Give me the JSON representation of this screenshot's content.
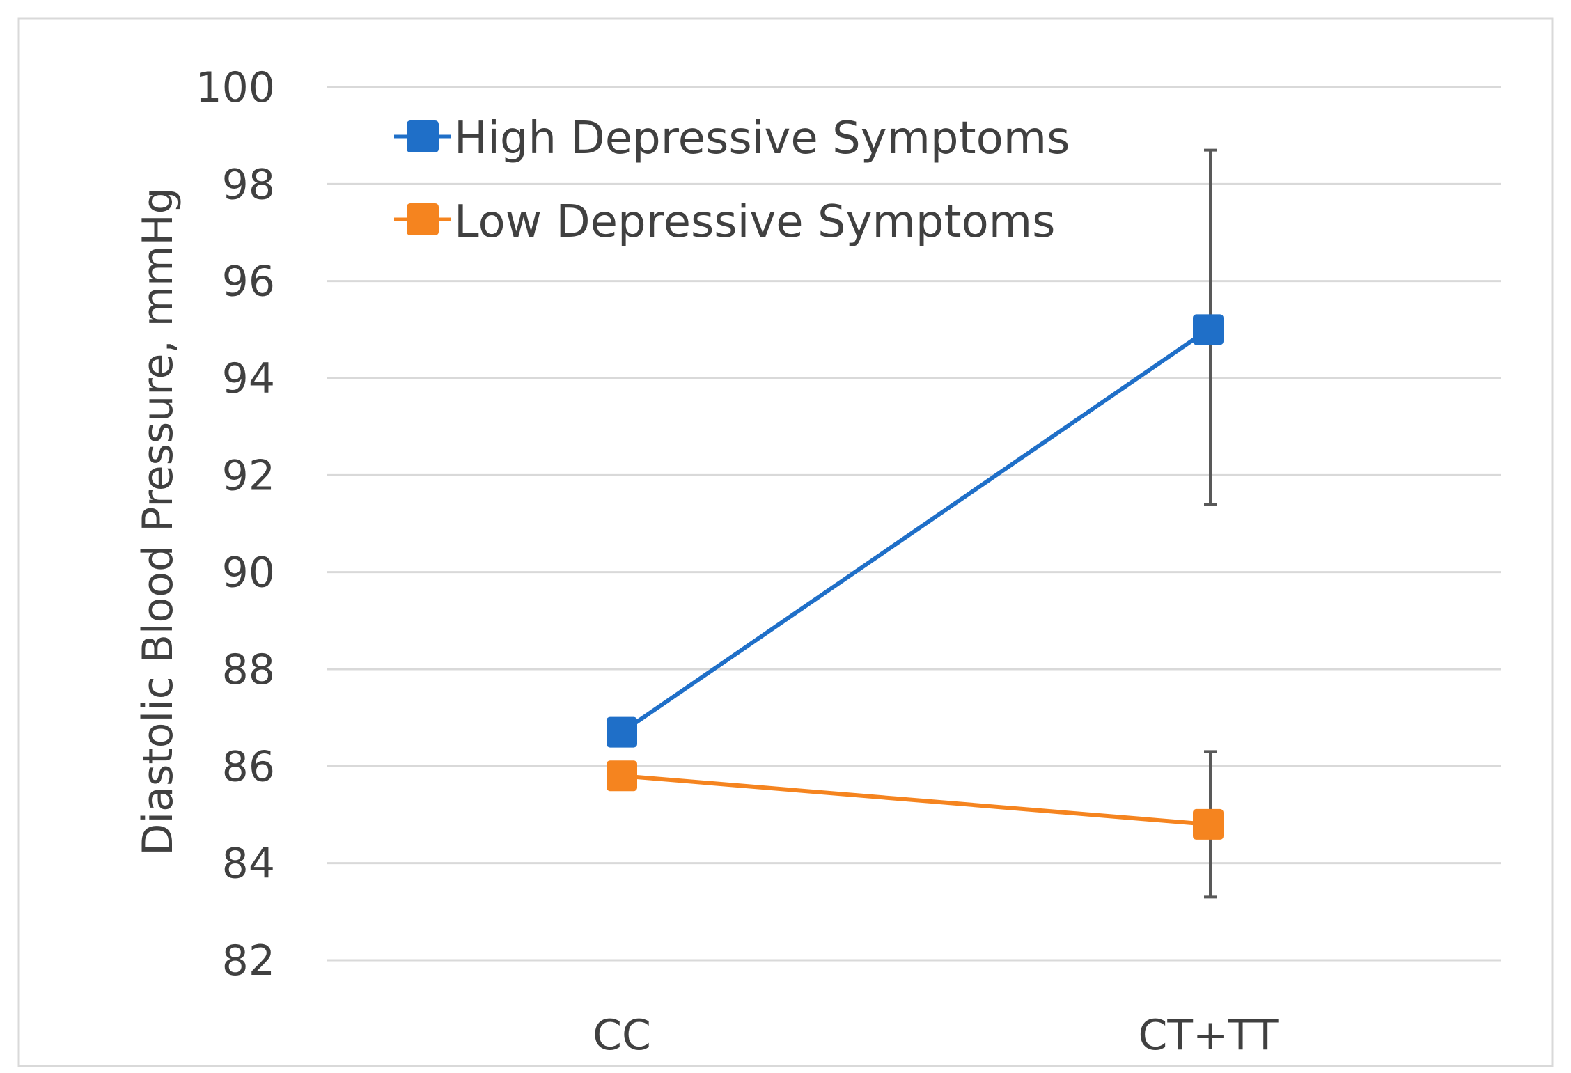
{
  "chart_data": {
    "type": "line",
    "title": "",
    "xlabel": "",
    "ylabel": "Diastolic Blood Pressure, mmHg",
    "categories": [
      "CC",
      "CT+TT"
    ],
    "ylim": [
      82,
      100
    ],
    "yticks": [
      82,
      84,
      86,
      88,
      90,
      92,
      94,
      96,
      98,
      100
    ],
    "ytick_labels": [
      "82",
      "84",
      "86",
      "88",
      "90",
      "92",
      "94",
      "96",
      "98",
      "100"
    ],
    "grid": true,
    "legend_position": "top-left",
    "series": [
      {
        "name": "High Depressive Symptoms",
        "color": "#1f6fc8",
        "marker": "square",
        "values": [
          86.7,
          95.0
        ],
        "error_bars": [
          null,
          [
            91.4,
            98.7
          ]
        ]
      },
      {
        "name": "Low Depressive Symptoms",
        "color": "#f5841f",
        "marker": "square",
        "values": [
          85.8,
          84.8
        ],
        "error_bars": [
          null,
          [
            83.3,
            86.3
          ]
        ]
      }
    ],
    "colors": {
      "grid": "#d9d9d9",
      "frame": "#d9d9d9",
      "error_bar": "#595959",
      "text": "#404040"
    }
  }
}
